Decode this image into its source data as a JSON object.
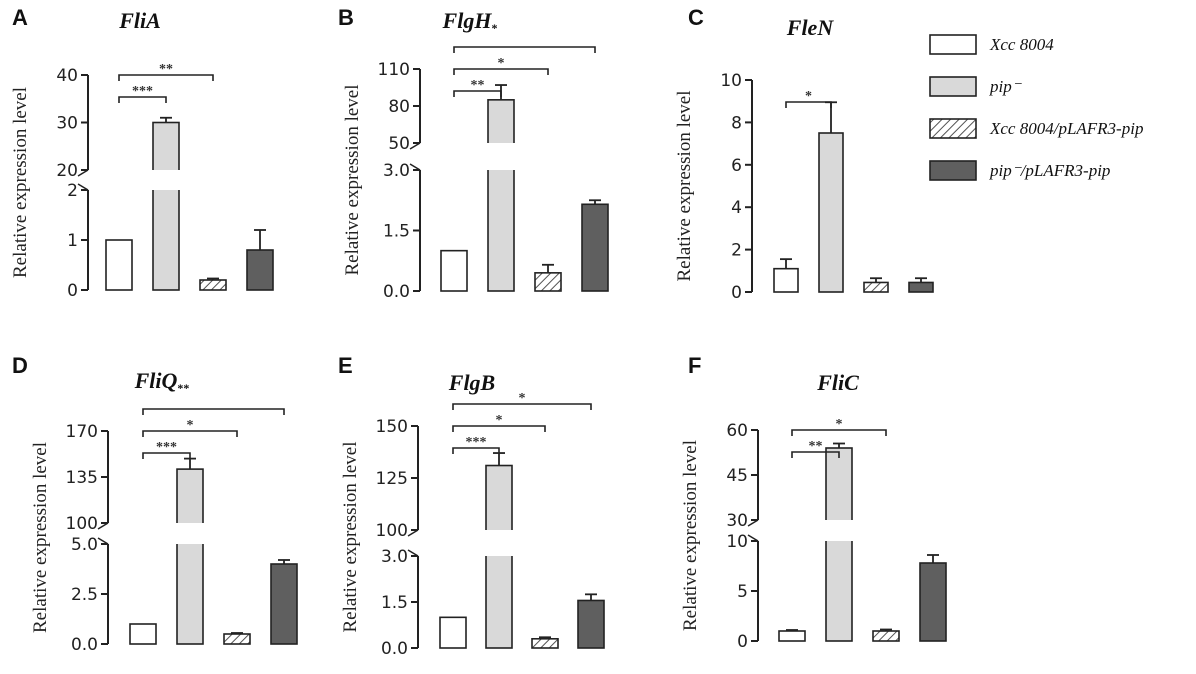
{
  "legend": [
    {
      "label": "Xcc 8004",
      "fill": "white"
    },
    {
      "label": "pip⁻",
      "fill": "light"
    },
    {
      "label": "Xcc 8004/pLAFR3-pip",
      "fill": "hatch"
    },
    {
      "label": "pip⁻/pLAFR3-pip",
      "fill": "dark"
    }
  ],
  "colors": {
    "white": "#ffffff",
    "light": "#d9d9d9",
    "dark": "#5f5f5f",
    "axis": "#222222",
    "hatch_stroke": "#555555"
  },
  "ylabel": "Relative expression level",
  "chart_data": [
    {
      "type": "bar",
      "panel": "A",
      "title": "FliA",
      "title_suffix": "",
      "categories": [
        "Xcc 8004",
        "pip⁻",
        "Xcc 8004/pLAFR3-pip",
        "pip⁻/pLAFR3-pip"
      ],
      "values": [
        1.0,
        30.0,
        0.2,
        0.8
      ],
      "errors": [
        0,
        1.0,
        0.03,
        0.4
      ],
      "broken_axis": true,
      "lower": {
        "ylim": [
          0,
          2
        ],
        "ticks": [
          "0",
          "1",
          "2"
        ]
      },
      "upper": {
        "ylim": [
          20,
          40
        ],
        "ticks": [
          "20",
          "30",
          "40"
        ]
      },
      "significance": [
        {
          "from": 0,
          "to": 1,
          "label": "***"
        },
        {
          "from": 0,
          "to": 2,
          "label": "**"
        }
      ]
    },
    {
      "type": "bar",
      "panel": "B",
      "title": "FlgH",
      "title_suffix": "*",
      "categories": [
        "Xcc 8004",
        "pip⁻",
        "Xcc 8004/pLAFR3-pip",
        "pip⁻/pLAFR3-pip"
      ],
      "values": [
        1.0,
        85.0,
        0.45,
        2.15
      ],
      "errors": [
        0,
        12.0,
        0.2,
        0.1
      ],
      "broken_axis": true,
      "lower": {
        "ylim": [
          0,
          3.0
        ],
        "ticks": [
          "0.0",
          "1.5",
          "3.0"
        ]
      },
      "upper": {
        "ylim": [
          50,
          110
        ],
        "ticks": [
          "50",
          "80",
          "110"
        ]
      },
      "significance": [
        {
          "from": 0,
          "to": 1,
          "label": "**"
        },
        {
          "from": 0,
          "to": 2,
          "label": "*"
        },
        {
          "from": 0,
          "to": 3,
          "label": ""
        }
      ]
    },
    {
      "type": "bar",
      "panel": "C",
      "title": "FleN",
      "title_suffix": "",
      "categories": [
        "Xcc 8004",
        "pip⁻",
        "Xcc 8004/pLAFR3-pip",
        "pip⁻/pLAFR3-pip"
      ],
      "values": [
        1.1,
        7.5,
        0.45,
        0.45
      ],
      "errors": [
        0.45,
        1.45,
        0.2,
        0.2
      ],
      "broken_axis": false,
      "lower": {
        "ylim": [
          0,
          10
        ],
        "ticks": [
          "0",
          "2",
          "4",
          "6",
          "8",
          "10"
        ]
      },
      "significance": [
        {
          "from": 0,
          "to": 1,
          "label": "*"
        }
      ]
    },
    {
      "type": "bar",
      "panel": "D",
      "title": "FliQ",
      "title_suffix": "**",
      "categories": [
        "Xcc 8004",
        "pip⁻",
        "Xcc 8004/pLAFR3-pip",
        "pip⁻/pLAFR3-pip"
      ],
      "values": [
        1.0,
        141.0,
        0.5,
        4.0
      ],
      "errors": [
        0,
        8.0,
        0.05,
        0.2
      ],
      "broken_axis": true,
      "lower": {
        "ylim": [
          0,
          5.0
        ],
        "ticks": [
          "0.0",
          "2.5",
          "5.0"
        ]
      },
      "upper": {
        "ylim": [
          100,
          170
        ],
        "ticks": [
          "100",
          "135",
          "170"
        ]
      },
      "significance": [
        {
          "from": 0,
          "to": 1,
          "label": "***"
        },
        {
          "from": 0,
          "to": 2,
          "label": "*"
        },
        {
          "from": 0,
          "to": 3,
          "label": ""
        }
      ]
    },
    {
      "type": "bar",
      "panel": "E",
      "title": "FlgB",
      "title_suffix": "",
      "categories": [
        "Xcc 8004",
        "pip⁻",
        "Xcc 8004/pLAFR3-pip",
        "pip⁻/pLAFR3-pip"
      ],
      "values": [
        1.0,
        131.0,
        0.3,
        1.55
      ],
      "errors": [
        0,
        6.0,
        0.05,
        0.2
      ],
      "broken_axis": true,
      "lower": {
        "ylim": [
          0,
          3.0
        ],
        "ticks": [
          "0.0",
          "1.5",
          "3.0"
        ]
      },
      "upper": {
        "ylim": [
          100,
          150
        ],
        "ticks": [
          "100",
          "125",
          "150"
        ]
      },
      "significance": [
        {
          "from": 0,
          "to": 1,
          "label": "***"
        },
        {
          "from": 0,
          "to": 2,
          "label": "*"
        },
        {
          "from": 0,
          "to": 3,
          "label": "*"
        }
      ]
    },
    {
      "type": "bar",
      "panel": "F",
      "title": "FliC",
      "title_suffix": "",
      "categories": [
        "Xcc 8004",
        "pip⁻",
        "Xcc 8004/pLAFR3-pip",
        "pip⁻/pLAFR3-pip"
      ],
      "values": [
        1.0,
        54.0,
        1.0,
        7.8
      ],
      "errors": [
        0.1,
        1.5,
        0.15,
        0.8
      ],
      "broken_axis": true,
      "lower": {
        "ylim": [
          0,
          10
        ],
        "ticks": [
          "0",
          "5",
          "10"
        ]
      },
      "upper": {
        "ylim": [
          30,
          60
        ],
        "ticks": [
          "30",
          "45",
          "60"
        ]
      },
      "significance": [
        {
          "from": 0,
          "to": 1,
          "label": "**"
        },
        {
          "from": 0,
          "to": 2,
          "label": "*"
        }
      ]
    }
  ]
}
